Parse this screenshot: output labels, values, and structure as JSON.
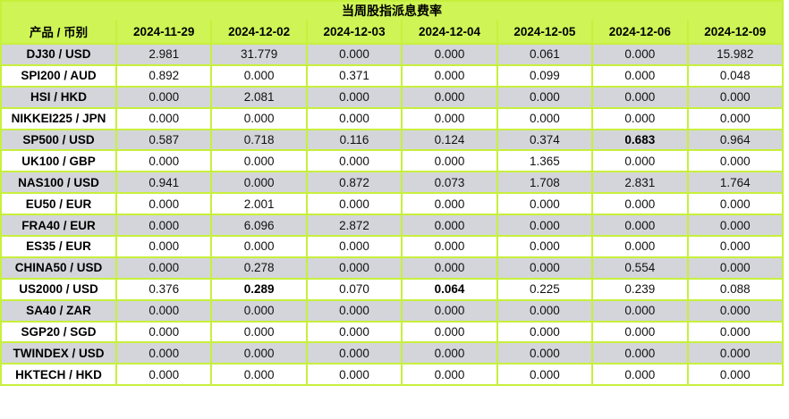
{
  "chart_data": {
    "type": "table",
    "title": "当周股指派息费率",
    "columns": [
      "产品 / 币别",
      "2024-11-29",
      "2024-12-02",
      "2024-12-03",
      "2024-12-04",
      "2024-12-05",
      "2024-12-06",
      "2024-12-09"
    ],
    "rows": [
      {
        "product": "DJ30 / USD",
        "values": [
          "2.981",
          "31.779",
          "0.000",
          "0.000",
          "0.061",
          "0.000",
          "15.982"
        ],
        "bold_cols": []
      },
      {
        "product": "SPI200 / AUD",
        "values": [
          "0.892",
          "0.000",
          "0.371",
          "0.000",
          "0.099",
          "0.000",
          "0.048"
        ],
        "bold_cols": []
      },
      {
        "product": "HSI / HKD",
        "values": [
          "0.000",
          "2.081",
          "0.000",
          "0.000",
          "0.000",
          "0.000",
          "0.000"
        ],
        "bold_cols": []
      },
      {
        "product": "NIKKEI225 / JPN",
        "values": [
          "0.000",
          "0.000",
          "0.000",
          "0.000",
          "0.000",
          "0.000",
          "0.000"
        ],
        "bold_cols": []
      },
      {
        "product": "SP500 / USD",
        "values": [
          "0.587",
          "0.718",
          "0.116",
          "0.124",
          "0.374",
          "0.683",
          "0.964"
        ],
        "bold_cols": [
          5
        ]
      },
      {
        "product": "UK100 / GBP",
        "values": [
          "0.000",
          "0.000",
          "0.000",
          "0.000",
          "1.365",
          "0.000",
          "0.000"
        ],
        "bold_cols": []
      },
      {
        "product": "NAS100 / USD",
        "values": [
          "0.941",
          "0.000",
          "0.872",
          "0.073",
          "1.708",
          "2.831",
          "1.764"
        ],
        "bold_cols": []
      },
      {
        "product": "EU50 / EUR",
        "values": [
          "0.000",
          "2.001",
          "0.000",
          "0.000",
          "0.000",
          "0.000",
          "0.000"
        ],
        "bold_cols": []
      },
      {
        "product": "FRA40 / EUR",
        "values": [
          "0.000",
          "6.096",
          "2.872",
          "0.000",
          "0.000",
          "0.000",
          "0.000"
        ],
        "bold_cols": []
      },
      {
        "product": "ES35 / EUR",
        "values": [
          "0.000",
          "0.000",
          "0.000",
          "0.000",
          "0.000",
          "0.000",
          "0.000"
        ],
        "bold_cols": []
      },
      {
        "product": "CHINA50 / USD",
        "values": [
          "0.000",
          "0.278",
          "0.000",
          "0.000",
          "0.000",
          "0.554",
          "0.000"
        ],
        "bold_cols": []
      },
      {
        "product": "US2000 / USD",
        "values": [
          "0.376",
          "0.289",
          "0.070",
          "0.064",
          "0.225",
          "0.239",
          "0.088"
        ],
        "bold_cols": [
          1,
          3
        ]
      },
      {
        "product": "SA40 / ZAR",
        "values": [
          "0.000",
          "0.000",
          "0.000",
          "0.000",
          "0.000",
          "0.000",
          "0.000"
        ],
        "bold_cols": []
      },
      {
        "product": "SGP20 / SGD",
        "values": [
          "0.000",
          "0.000",
          "0.000",
          "0.000",
          "0.000",
          "0.000",
          "0.000"
        ],
        "bold_cols": []
      },
      {
        "product": "TWINDEX / USD",
        "values": [
          "0.000",
          "0.000",
          "0.000",
          "0.000",
          "0.000",
          "0.000",
          "0.000"
        ],
        "bold_cols": []
      },
      {
        "product": "HKTECH / HKD",
        "values": [
          "0.000",
          "0.000",
          "0.000",
          "0.000",
          "0.000",
          "0.000",
          "0.000"
        ],
        "bold_cols": []
      }
    ]
  },
  "colors": {
    "header_bg": "#CEF456",
    "grid_border": "#C7F03C",
    "alt_row_bg": "#D3D5DA",
    "row_bg": "#FFFFFF",
    "text": "#000000"
  }
}
